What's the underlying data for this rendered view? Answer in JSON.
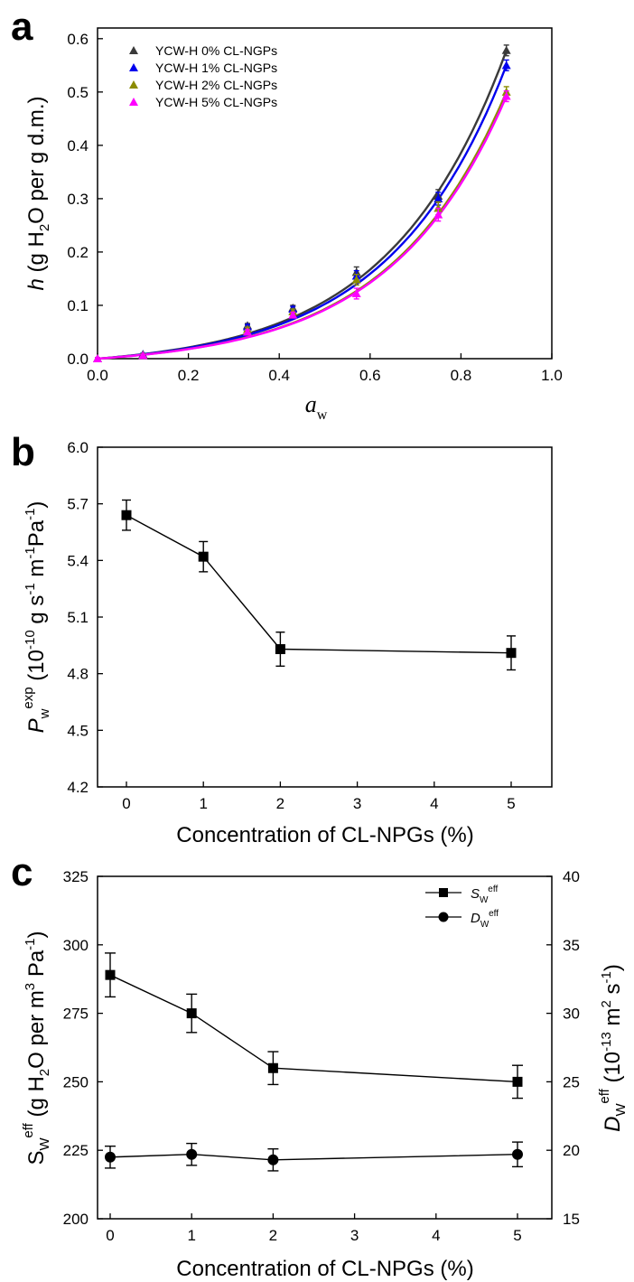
{
  "panels": {
    "a": {
      "letter": "a"
    },
    "b": {
      "letter": "b"
    },
    "c": {
      "letter": "c"
    }
  },
  "chart_data": [
    {
      "panel": "a",
      "type": "scatter",
      "x_ticks": [
        "0.0",
        "0.2",
        "0.4",
        "0.6",
        "0.8",
        "1.0"
      ],
      "y_ticks": [
        "0.0",
        "0.1",
        "0.2",
        "0.3",
        "0.4",
        "0.5",
        "0.6"
      ],
      "xlim": [
        0,
        1.0
      ],
      "ylim": [
        0,
        0.62
      ],
      "xlabel": {
        "main": "a",
        "sub": "w"
      },
      "ylabel": {
        "p1": "h",
        "p2": " (g H",
        "sub": "2",
        "p3": "O per g d.m.)"
      },
      "legend_position": "top-left",
      "series": [
        {
          "name": "YCW-H  0% CL-NGPs",
          "color": "#3a3a3a",
          "x": [
            0,
            0.1,
            0.33,
            0.43,
            0.57,
            0.75,
            0.9
          ],
          "y": [
            0.0,
            0.008,
            0.062,
            0.095,
            0.162,
            0.305,
            0.578
          ],
          "err": [
            0.002,
            0.002,
            0.004,
            0.005,
            0.01,
            0.012,
            0.01
          ]
        },
        {
          "name": "YCW-H  1% CL-NGPs",
          "color": "#0000ee",
          "x": [
            0,
            0.1,
            0.33,
            0.43,
            0.57,
            0.75,
            0.9
          ],
          "y": [
            0.0,
            0.008,
            0.06,
            0.093,
            0.155,
            0.3,
            0.55
          ],
          "err": [
            0.002,
            0.002,
            0.004,
            0.005,
            0.01,
            0.012,
            0.01
          ]
        },
        {
          "name": "YCW-H  2% CL-NGPs",
          "color": "#8b8b00",
          "x": [
            0,
            0.1,
            0.33,
            0.43,
            0.57,
            0.75,
            0.9
          ],
          "y": [
            0.0,
            0.007,
            0.055,
            0.088,
            0.148,
            0.282,
            0.5
          ],
          "err": [
            0.002,
            0.002,
            0.004,
            0.005,
            0.01,
            0.012,
            0.01
          ]
        },
        {
          "name": "YCW-H  5% CL-NGPs",
          "color": "#ff00ff",
          "x": [
            0,
            0.1,
            0.33,
            0.43,
            0.57,
            0.75,
            0.9
          ],
          "y": [
            0.0,
            0.006,
            0.05,
            0.082,
            0.122,
            0.27,
            0.492
          ],
          "err": [
            0.002,
            0.002,
            0.004,
            0.005,
            0.01,
            0.012,
            0.01
          ]
        }
      ]
    },
    {
      "panel": "b",
      "type": "line",
      "categories": [
        "0",
        "1",
        "2",
        "3",
        "4",
        "5"
      ],
      "y_ticks": [
        "4.2",
        "4.5",
        "4.8",
        "5.1",
        "5.4",
        "5.7",
        "6.0"
      ],
      "ylim": [
        4.2,
        6.0
      ],
      "xlabel": "Concentration of CL-NPGs (%)",
      "ylabel": {
        "p1": "P",
        "sub": "w",
        "sup": "exp",
        "p2": " (10",
        "sup2": "-10",
        "p3": " g s",
        "sup3": "-1",
        "p4": " m",
        "sup4": "-1",
        "p5": "Pa",
        "sup5": "-1",
        "p6": ")"
      },
      "series": [
        {
          "x": [
            0,
            1,
            2,
            5
          ],
          "y": [
            5.64,
            5.42,
            4.93,
            4.91
          ],
          "err": [
            0.08,
            0.08,
            0.09,
            0.09
          ]
        }
      ]
    },
    {
      "panel": "c",
      "type": "line",
      "categories": [
        "0",
        "1",
        "2",
        "3",
        "4",
        "5"
      ],
      "y_ticks_left": [
        "200",
        "225",
        "250",
        "275",
        "300",
        "325"
      ],
      "y_ticks_right": [
        "15",
        "20",
        "25",
        "30",
        "35",
        "40"
      ],
      "ylim_left": [
        200,
        325
      ],
      "ylim_right": [
        15,
        40
      ],
      "xlabel": "Concentration of CL-NPGs (%)",
      "ylabel_left": {
        "p1": "S",
        "sub": "W",
        "sup": "eff",
        "p2": " (g H",
        "sub2": "2",
        "p3": "O per m",
        "sup3": "3",
        "p4": " Pa",
        "sup4": "-1",
        "p5": ")"
      },
      "ylabel_right": {
        "p1": "D",
        "sub": "W",
        "sup": "eff",
        "p2": " (10",
        "sup2": "-13",
        "p3": " m",
        "sup3": "2",
        "p4": " s",
        "sup4": "-1",
        "p5": ")"
      },
      "legend_position": "top-right",
      "series": [
        {
          "name": {
            "main": "S",
            "sub": "W",
            "sup": "eff"
          },
          "marker": "square",
          "axis": "left",
          "x": [
            0,
            1,
            2,
            5
          ],
          "y": [
            289,
            275,
            255,
            250
          ],
          "err": [
            8,
            7,
            6,
            6
          ]
        },
        {
          "name": {
            "main": "D",
            "sub": "W",
            "sup": "eff"
          },
          "marker": "circle",
          "axis": "right",
          "x": [
            0,
            1,
            2,
            5
          ],
          "y": [
            19.5,
            19.7,
            19.3,
            19.7
          ],
          "err": [
            0.8,
            0.8,
            0.8,
            0.9
          ]
        }
      ]
    }
  ]
}
